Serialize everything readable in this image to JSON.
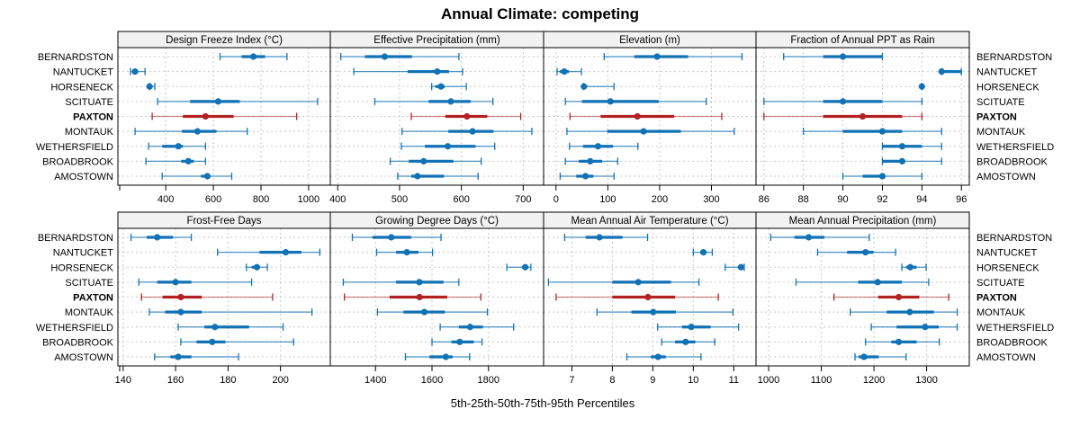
{
  "chart_data": {
    "type": "dot-whisker",
    "title": "Annual Climate: competing",
    "xlabel": "5th-25th-50th-75th-95th Percentiles",
    "highlight": "PAXTON",
    "colors": {
      "normal": "#1172b6",
      "highlight": "#b22222"
    },
    "categories": [
      "BERNARDSTON",
      "NANTUCKET",
      "HORSENECK",
      "SCITUATE",
      "PAXTON",
      "MONTAUK",
      "WETHERSFIELD",
      "BROADBROOK",
      "AMOSTOWN"
    ],
    "panels": [
      {
        "title": "Design Freeze Index (°C)",
        "xlim": [
          199,
          1091
        ],
        "ticks": [
          400,
          600,
          800,
          1000
        ],
        "data": [
          [
            628,
            719,
            768,
            817,
            909
          ],
          [
            252,
            262,
            271,
            282,
            313
          ],
          [
            332,
            332,
            332,
            340,
            354
          ],
          [
            366,
            502,
            620,
            711,
            1038
          ],
          [
            343,
            472,
            567,
            685,
            950
          ],
          [
            271,
            468,
            533,
            613,
            742
          ],
          [
            328,
            385,
            453,
            472,
            567
          ],
          [
            317,
            465,
            495,
            518,
            567
          ],
          [
            385,
            548,
            575,
            586,
            677
          ]
        ]
      },
      {
        "title": "Effective Precipitation (mm)",
        "xlim": [
          388,
          733
        ],
        "ticks": [
          400,
          500,
          600,
          700
        ],
        "data": [
          [
            405,
            444,
            476,
            520,
            596
          ],
          [
            426,
            513,
            561,
            580,
            602
          ],
          [
            552,
            558,
            567,
            573,
            608
          ],
          [
            460,
            547,
            583,
            615,
            651
          ],
          [
            519,
            574,
            609,
            642,
            696
          ],
          [
            504,
            579,
            618,
            652,
            714
          ],
          [
            503,
            541,
            578,
            623,
            654
          ],
          [
            485,
            515,
            539,
            587,
            632
          ],
          [
            497,
            519,
            529,
            572,
            627
          ]
        ]
      },
      {
        "title": "Elevation (m)",
        "xlim": [
          -24,
          386
        ],
        "ticks": [
          0,
          100,
          200,
          300
        ],
        "data": [
          [
            93,
            151,
            195,
            255,
            359
          ],
          [
            2,
            7,
            16,
            25,
            49
          ],
          [
            53,
            53,
            54,
            56,
            112
          ],
          [
            18,
            50,
            105,
            198,
            290
          ],
          [
            27,
            86,
            157,
            228,
            320
          ],
          [
            21,
            99,
            169,
            241,
            344
          ],
          [
            26,
            52,
            81,
            110,
            158
          ],
          [
            18,
            44,
            66,
            89,
            119
          ],
          [
            8,
            39,
            57,
            72,
            112
          ]
        ]
      },
      {
        "title": "Fraction of Annual PPT as Rain",
        "xlim": [
          85.6,
          96.4
        ],
        "ticks": [
          86,
          88,
          90,
          92,
          94,
          96
        ],
        "data": [
          [
            87,
            89,
            90,
            92,
            92
          ],
          [
            95,
            95,
            95,
            96,
            96
          ],
          [
            94,
            94,
            94,
            94,
            94
          ],
          [
            86,
            89,
            90,
            92,
            94
          ],
          [
            86,
            89,
            91,
            93,
            94
          ],
          [
            88,
            90,
            92,
            93,
            95
          ],
          [
            92,
            92,
            93,
            94,
            95
          ],
          [
            92,
            92,
            93,
            93,
            95
          ],
          [
            90,
            91,
            92,
            92,
            94
          ]
        ]
      },
      {
        "title": "Frost-Free Days",
        "xlim": [
          138,
          219
        ],
        "ticks": [
          140,
          160,
          180,
          200
        ],
        "data": [
          [
            143,
            149,
            153,
            159,
            166
          ],
          [
            176,
            192,
            202,
            208,
            215
          ],
          [
            187,
            189,
            191,
            192,
            195
          ],
          [
            146,
            153,
            160,
            166,
            189
          ],
          [
            147,
            155,
            162,
            170,
            197
          ],
          [
            150,
            156,
            162,
            170,
            212
          ],
          [
            161,
            171,
            175,
            188,
            201
          ],
          [
            162,
            168,
            174,
            179,
            205
          ],
          [
            152,
            158,
            161,
            166,
            184
          ]
        ]
      },
      {
        "title": "Growing Degree Days (°C)",
        "xlim": [
          1240,
          1995
        ],
        "ticks": [
          1400,
          1600,
          1800
        ],
        "data": [
          [
            1318,
            1389,
            1456,
            1526,
            1632
          ],
          [
            1404,
            1473,
            1511,
            1552,
            1602
          ],
          [
            1865,
            1918,
            1930,
            1939,
            1950
          ],
          [
            1286,
            1473,
            1555,
            1641,
            1695
          ],
          [
            1290,
            1450,
            1556,
            1654,
            1773
          ],
          [
            1407,
            1499,
            1573,
            1646,
            1796
          ],
          [
            1629,
            1695,
            1735,
            1780,
            1889
          ],
          [
            1600,
            1669,
            1698,
            1748,
            1777
          ],
          [
            1506,
            1591,
            1649,
            1673,
            1733
          ]
        ]
      },
      {
        "title": "Mean Annual Air Temperature (°C)",
        "xlim": [
          6.3,
          11.55
        ],
        "ticks": [
          7,
          8,
          9,
          10,
          11
        ],
        "data": [
          [
            6.82,
            7.34,
            7.68,
            8.25,
            8.87
          ],
          [
            10.0,
            10.17,
            10.25,
            10.33,
            10.47
          ],
          [
            10.79,
            11.1,
            11.18,
            11.22,
            11.26
          ],
          [
            6.42,
            8.0,
            8.64,
            9.45,
            10.14
          ],
          [
            6.61,
            8.0,
            8.88,
            9.55,
            10.62
          ],
          [
            7.62,
            8.47,
            9.01,
            9.57,
            10.98
          ],
          [
            9.12,
            9.72,
            9.95,
            10.43,
            11.12
          ],
          [
            9.22,
            9.55,
            9.81,
            10.05,
            10.53
          ],
          [
            8.36,
            8.95,
            9.13,
            9.32,
            10.19
          ]
        ]
      },
      {
        "title": "Mean Annual Precipitation (mm)",
        "xlim": [
          976,
          1381
        ],
        "ticks": [
          1000,
          1100,
          1200,
          1300
        ],
        "data": [
          [
            1004,
            1049,
            1076,
            1106,
            1191
          ],
          [
            1093,
            1149,
            1184,
            1199,
            1241
          ],
          [
            1253,
            1261,
            1269,
            1281,
            1299
          ],
          [
            1052,
            1170,
            1207,
            1253,
            1304
          ],
          [
            1124,
            1208,
            1247,
            1286,
            1342
          ],
          [
            1155,
            1224,
            1268,
            1314,
            1358
          ],
          [
            1195,
            1243,
            1297,
            1323,
            1358
          ],
          [
            1184,
            1233,
            1247,
            1281,
            1324
          ],
          [
            1164,
            1171,
            1181,
            1209,
            1261
          ]
        ]
      }
    ]
  }
}
